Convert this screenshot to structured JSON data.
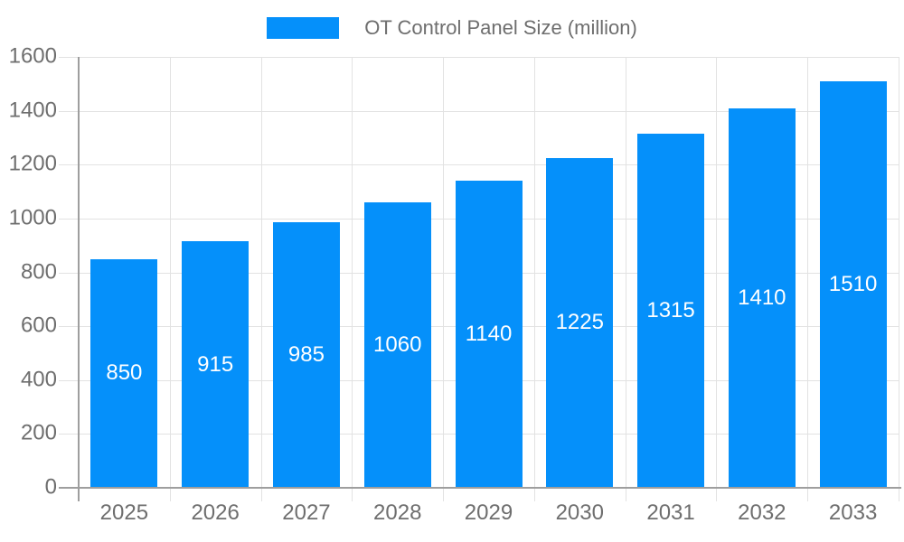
{
  "chart_data": {
    "type": "bar",
    "title": "OT Control Panel Size (million)",
    "legend": {
      "label": "OT Control Panel Size (million)",
      "position": "top-center"
    },
    "categories": [
      "2025",
      "2026",
      "2027",
      "2028",
      "2029",
      "2030",
      "2031",
      "2032",
      "2033"
    ],
    "values": [
      850,
      915,
      985,
      1060,
      1140,
      1225,
      1315,
      1410,
      1510
    ],
    "xlabel": "",
    "ylabel": "",
    "ylim": [
      0,
      1600
    ],
    "ytick_step": 200,
    "ytick_labels": [
      "0",
      "200",
      "400",
      "600",
      "800",
      "1000",
      "1200",
      "1400",
      "1600"
    ],
    "grid": true,
    "bar_value_labels_visible": true,
    "bar_value_label_position": "inside-center",
    "colors": {
      "bar": "#0590fa",
      "grid": "#e2e2e2",
      "axis": "#9e9e9e",
      "text": "#6e6e6e",
      "bar_label": "#ffffff",
      "background": "#ffffff"
    }
  }
}
